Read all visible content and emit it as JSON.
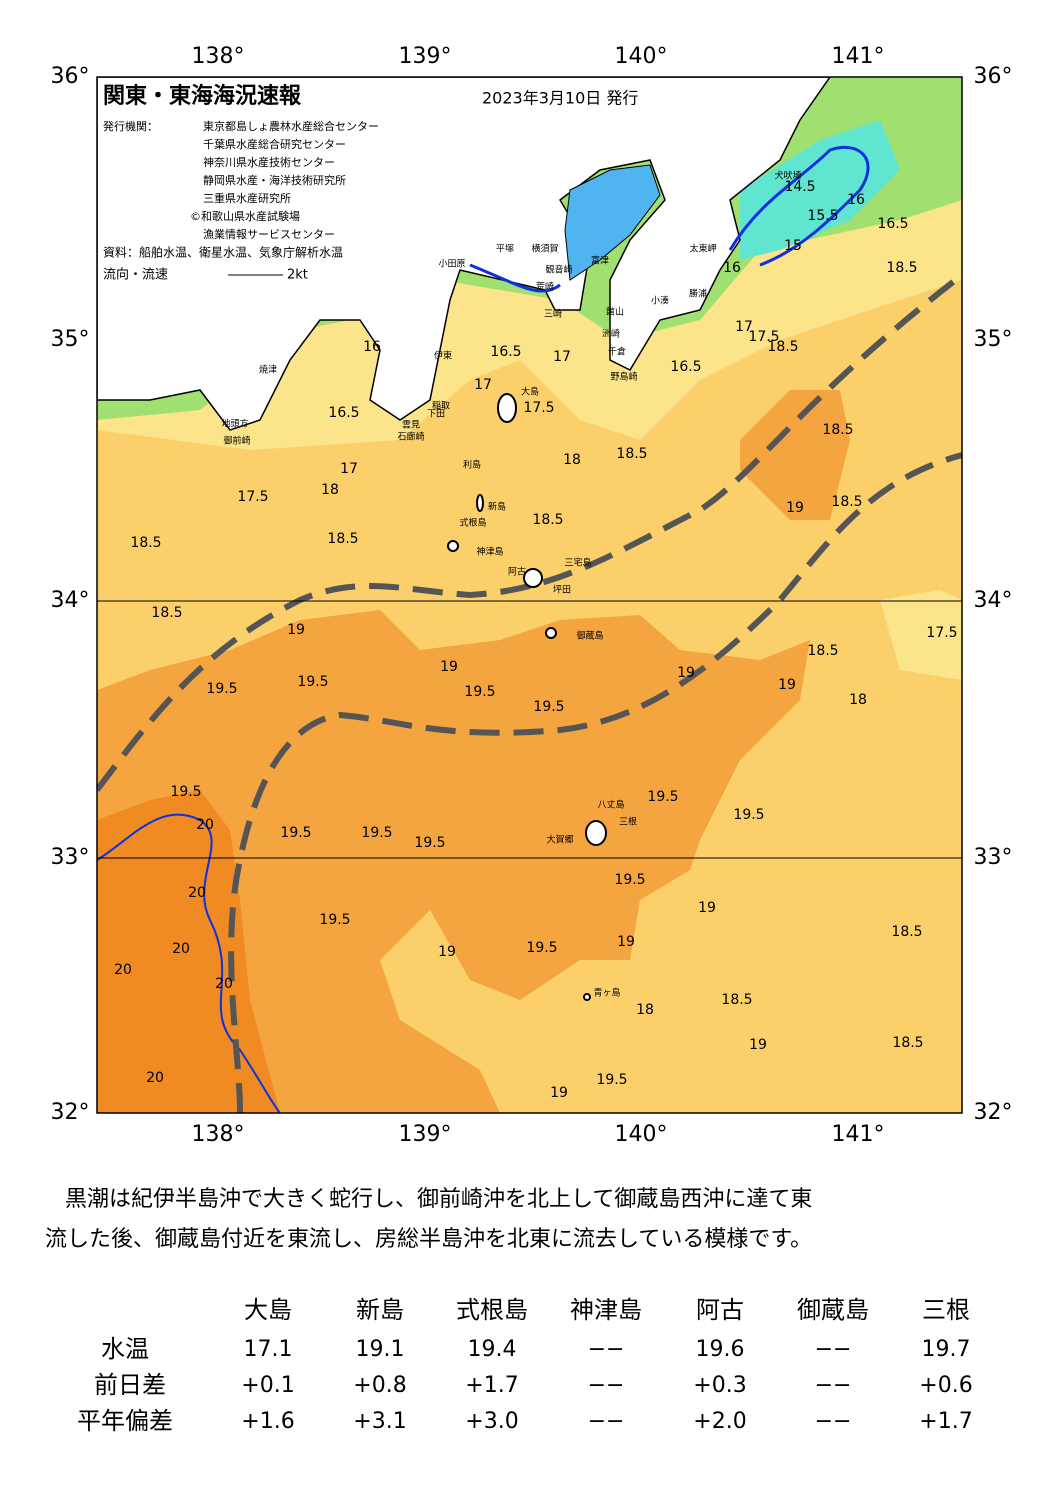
{
  "header": {
    "title": "関東・東海海況速報",
    "date": "2023年3月10日 発行",
    "issuer_label": "発行機関：",
    "issuers": [
      "東京都島しょ農林水産総合センター",
      "千葉県水産総合研究センター",
      "神奈川県水産技術センター",
      "静岡県水産・海洋技術研究所",
      "三重県水産研究所",
      "©和歌山県水産試験場",
      "漁業情報サービスセンター"
    ],
    "source": "資料：船舶水温、衛星水温、気象庁解析水温",
    "current_label": "流向・流速",
    "current_scale": "2kt"
  },
  "map": {
    "lon_labels": [
      "138°",
      "139°",
      "140°",
      "141°"
    ],
    "lat_labels": [
      "36°",
      "35°",
      "34°",
      "33°",
      "32°"
    ],
    "places": [
      "大島",
      "利島",
      "新島",
      "式根島",
      "神津島",
      "三宅島",
      "阿古",
      "坪田",
      "御蔵島",
      "八丈島",
      "三根",
      "大賀郷",
      "青ヶ島",
      "小田原",
      "平塚",
      "横須賀",
      "観音崎",
      "荒崎",
      "富津",
      "三崎",
      "洲崎",
      "館山",
      "千倉",
      "野島崎",
      "小湊",
      "勝浦",
      "太東岬",
      "犬吠埼",
      "伊東",
      "稲取",
      "下田",
      "雲見",
      "石廊崎",
      "焼津",
      "地頭方",
      "御前崎"
    ],
    "contour_labels": [
      "18.5",
      "18.5",
      "18.5",
      "18.5",
      "17.5",
      "17",
      "16",
      "16.5",
      "16",
      "15.5",
      "15",
      "14.5",
      "16.5",
      "17",
      "17.5",
      "18",
      "16.5",
      "17",
      "17",
      "17.5",
      "18",
      "16.5",
      "16",
      "18.5",
      "18.5",
      "18.5",
      "18.5",
      "19",
      "19",
      "19.5",
      "19.5",
      "19.5",
      "19.5",
      "19",
      "18.5",
      "19",
      "18",
      "17.5",
      "19",
      "18.5",
      "19.5",
      "20",
      "19.5",
      "19.5",
      "19.5",
      "19.5",
      "19.5",
      "20",
      "19.5",
      "20",
      "20",
      "20",
      "19.5",
      "19",
      "19.5",
      "19",
      "19",
      "18.5",
      "18.5",
      "18",
      "18.5",
      "19",
      "20",
      "19",
      "19.5"
    ]
  },
  "summary": [
    "黒潮は紀伊半島沖で大きく蛇行し、御前崎沖を北上して御蔵島西沖に達て東",
    "流した後、御蔵島付近を東流し、房総半島沖を北東に流去している模様です。"
  ],
  "table": {
    "columns": [
      "大島",
      "新島",
      "式根島",
      "神津島",
      "阿古",
      "御蔵島",
      "三根"
    ],
    "rows": [
      {
        "label": "水温",
        "values": [
          "17.1",
          "19.1",
          "19.4",
          "−−",
          "19.6",
          "−−",
          "19.7"
        ]
      },
      {
        "label": "前日差",
        "values": [
          "+0.1",
          "+0.8",
          "+1.7",
          "−−",
          "+0.3",
          "−−",
          "+0.6"
        ]
      },
      {
        "label": "平年偏差",
        "values": [
          "+1.6",
          "+3.1",
          "+3.0",
          "−−",
          "+2.0",
          "−−",
          "+1.7"
        ]
      }
    ]
  }
}
